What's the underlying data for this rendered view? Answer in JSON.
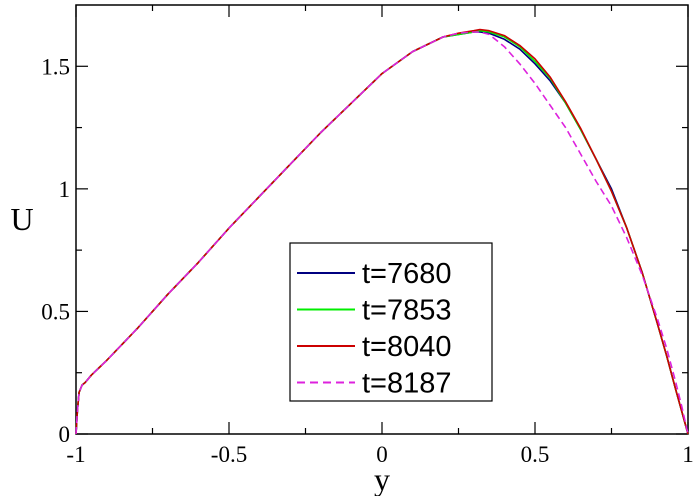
{
  "chart_data": {
    "type": "line",
    "title": "",
    "xlabel": "y",
    "ylabel": "U",
    "xlim": [
      -1,
      1
    ],
    "ylim": [
      0,
      1.75
    ],
    "grid": false,
    "legend_placement": "center-bottom",
    "x_ticks": [
      {
        "value": -1,
        "label": "-1"
      },
      {
        "value": -0.5,
        "label": "-0.5"
      },
      {
        "value": 0,
        "label": "0"
      },
      {
        "value": 0.5,
        "label": "0.5"
      },
      {
        "value": 1,
        "label": "1"
      }
    ],
    "y_ticks": [
      {
        "value": 0,
        "label": "0"
      },
      {
        "value": 0.5,
        "label": "0.5"
      },
      {
        "value": 1,
        "label": "1"
      },
      {
        "value": 1.5,
        "label": "1.5"
      }
    ],
    "x": [
      -1.0,
      -0.995,
      -0.99,
      -0.98,
      -0.97,
      -0.95,
      -0.9,
      -0.8,
      -0.7,
      -0.6,
      -0.5,
      -0.4,
      -0.3,
      -0.2,
      -0.1,
      0.0,
      0.1,
      0.2,
      0.25,
      0.3,
      0.32,
      0.35,
      0.4,
      0.45,
      0.5,
      0.55,
      0.6,
      0.65,
      0.7,
      0.75,
      0.8,
      0.85,
      0.9,
      0.93,
      0.96,
      0.98,
      1.0
    ],
    "series": [
      {
        "name": "t=7680",
        "color": "#000080",
        "dash": false,
        "values": [
          0.0,
          0.1,
          0.17,
          0.2,
          0.21,
          0.24,
          0.3,
          0.43,
          0.57,
          0.7,
          0.84,
          0.97,
          1.1,
          1.23,
          1.35,
          1.47,
          1.56,
          1.62,
          1.63,
          1.64,
          1.64,
          1.635,
          1.61,
          1.57,
          1.51,
          1.44,
          1.35,
          1.24,
          1.12,
          1.0,
          0.84,
          0.66,
          0.45,
          0.32,
          0.18,
          0.09,
          0.0
        ]
      },
      {
        "name": "t=7853",
        "color": "#00ee00",
        "dash": false,
        "values": [
          0.0,
          0.1,
          0.17,
          0.2,
          0.21,
          0.24,
          0.3,
          0.43,
          0.57,
          0.7,
          0.84,
          0.97,
          1.1,
          1.23,
          1.35,
          1.47,
          1.56,
          1.62,
          1.63,
          1.64,
          1.645,
          1.64,
          1.62,
          1.58,
          1.52,
          1.45,
          1.35,
          1.24,
          1.12,
          0.99,
          0.84,
          0.66,
          0.45,
          0.32,
          0.18,
          0.09,
          0.0
        ]
      },
      {
        "name": "t=8040",
        "color": "#cc0000",
        "dash": false,
        "values": [
          0.0,
          0.1,
          0.17,
          0.2,
          0.21,
          0.24,
          0.3,
          0.43,
          0.57,
          0.7,
          0.84,
          0.97,
          1.1,
          1.23,
          1.35,
          1.47,
          1.56,
          1.62,
          1.635,
          1.645,
          1.65,
          1.645,
          1.625,
          1.585,
          1.53,
          1.455,
          1.355,
          1.245,
          1.12,
          0.99,
          0.84,
          0.66,
          0.45,
          0.32,
          0.18,
          0.09,
          0.0
        ]
      },
      {
        "name": "t=8187",
        "color": "#dd22dd",
        "dash": true,
        "values": [
          0.0,
          0.1,
          0.17,
          0.2,
          0.21,
          0.24,
          0.3,
          0.43,
          0.57,
          0.7,
          0.84,
          0.97,
          1.1,
          1.23,
          1.35,
          1.47,
          1.56,
          1.62,
          1.635,
          1.64,
          1.64,
          1.63,
          1.58,
          1.51,
          1.43,
          1.34,
          1.25,
          1.14,
          1.03,
          0.93,
          0.8,
          0.65,
          0.47,
          0.35,
          0.21,
          0.11,
          0.0
        ]
      }
    ]
  }
}
